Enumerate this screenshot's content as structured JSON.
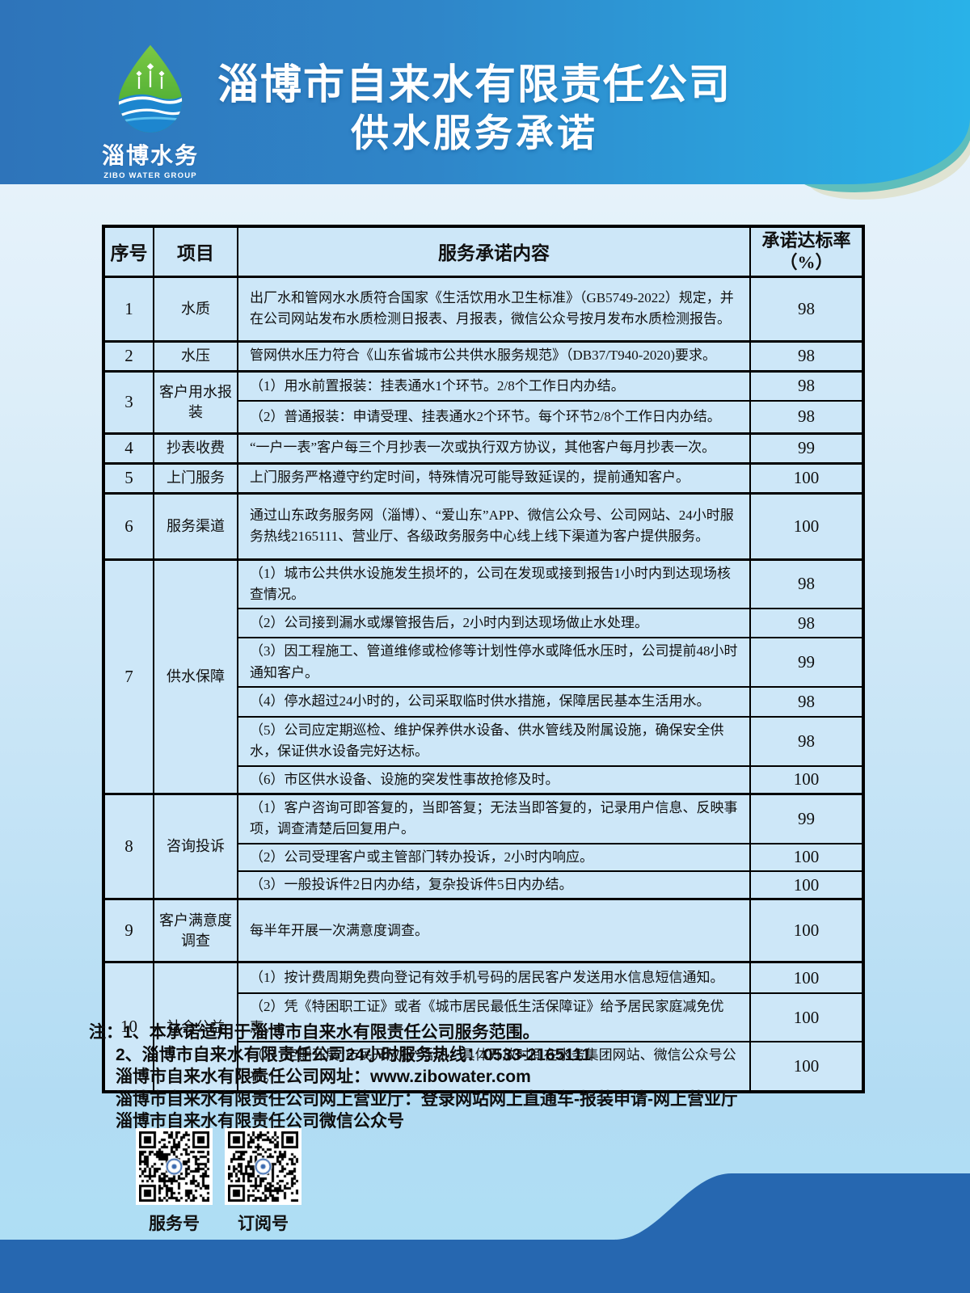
{
  "header": {
    "logo_cn": "淄博水务",
    "logo_en": "ZIBO WATER GROUP",
    "title_line1": "淄博市自来水有限责任公司",
    "title_line2": "供水服务承诺"
  },
  "table": {
    "headers": {
      "no": "序号",
      "item": "项目",
      "content": "服务承诺内容",
      "rate_line1": "承诺达标率",
      "rate_line2": "（%）"
    },
    "groups": [
      {
        "no": "1",
        "item": "水质",
        "rows": [
          {
            "content": "出厂水和管网水水质符合国家《生活饮用水卫生标准》（GB5749-2022）规定，并在公司网站发布水质检测日报表、月报表，微信公众号按月发布水质检测报告。",
            "rate": "98"
          }
        ]
      },
      {
        "no": "2",
        "item": "水压",
        "rows": [
          {
            "content": "管网供水压力符合《山东省城市公共供水服务规范》（DB37/T940-2020)要求。",
            "rate": "98"
          }
        ]
      },
      {
        "no": "3",
        "item": "客户用水报装",
        "rows": [
          {
            "content": "（1）用水前置报装：挂表通水1个环节。2/8个工作日内办结。",
            "rate": "98"
          },
          {
            "content": "（2）普通报装：申请受理、挂表通水2个环节。每个环节2/8个工作日内办结。",
            "rate": "98"
          }
        ]
      },
      {
        "no": "4",
        "item": "抄表收费",
        "rows": [
          {
            "content": "“一户一表”客户每三个月抄表一次或执行双方协议，其他客户每月抄表一次。",
            "rate": "99"
          }
        ]
      },
      {
        "no": "5",
        "item": "上门服务",
        "rows": [
          {
            "content": "上门服务严格遵守约定时间，特殊情况可能导致延误的，提前通知客户。",
            "rate": "100"
          }
        ]
      },
      {
        "no": "6",
        "item": "服务渠道",
        "rows": [
          {
            "content": "通过山东政务服务网（淄博）、“爱山东”APP、微信公众号、公司网站、24小时服务热线2165111、营业厅、各级政务服务中心线上线下渠道为客户提供服务。",
            "rate": "100"
          }
        ]
      },
      {
        "no": "7",
        "item": "供水保障",
        "rows": [
          {
            "content": "（1）城市公共供水设施发生损坏的，公司在发现或接到报告1小时内到达现场核查情况。",
            "rate": "98"
          },
          {
            "content": "（2）公司接到漏水或爆管报告后，2小时内到达现场做止水处理。",
            "rate": "98"
          },
          {
            "content": "（3）因工程施工、管道维修或检修等计划性停水或降低水压时，公司提前48小时通知客户。",
            "rate": "99"
          },
          {
            "content": "（4）停水超过24小时的，公司采取临时供水措施，保障居民基本生活用水。",
            "rate": "98"
          },
          {
            "content": "（5）公司应定期巡检、维护保养供水设备、供水管线及附属设施，确保安全供水，保证供水设备完好达标。",
            "rate": "98"
          },
          {
            "content": "（6）市区供水设备、设施的突发性事故抢修及时。",
            "rate": "100"
          }
        ]
      },
      {
        "no": "8",
        "item": "咨询投诉",
        "rows": [
          {
            "content": "（1）客户咨询可即答复的，当即答复；无法当即答复的，记录用户信息、反映事项，调查清楚后回复用户。",
            "rate": "99"
          },
          {
            "content": "（2）公司受理客户或主管部门转办投诉，2小时内响应。",
            "rate": "100"
          },
          {
            "content": "（3）一般投诉件2日内办结，复杂投诉件5日内办结。",
            "rate": "100"
          }
        ]
      },
      {
        "no": "9",
        "item": "客户满意度调查",
        "rows": [
          {
            "content": "每半年开展一次满意度调查。",
            "rate": "100"
          }
        ]
      },
      {
        "no": "10",
        "item": "社会公益",
        "rows": [
          {
            "content": "（1）按计费周期免费向登记有效手机号码的居民客户发送用水信息短信通知。",
            "rate": "100"
          },
          {
            "content": "（2）凭《特困职工证》或者《城市居民最低生活保障证》给予居民家庭减免优惠。",
            "rate": "100"
          },
          {
            "content": "（3）定期开展“市民开放日”活动，具体开放时间在水务集团网站、微信公众号公布。",
            "rate": "100"
          }
        ]
      }
    ]
  },
  "notes": {
    "line1": "注：1、本承诺适用于淄博市自来水有限责任公司服务范围。",
    "line2": "2、淄博市自来水有限责任公司24小时服务热线：0533-2165111",
    "line3": "淄博市自来水有限责任公司网址：www.zibowater.com",
    "line4": "淄博市自来水有限责任公司网上营业厅：登录网站网上直通车-报装申请-网上营业厅",
    "line5": "淄博市自来水有限责任公司微信公众号"
  },
  "qr": {
    "label_service": "服务号",
    "label_subscribe": "订阅号"
  },
  "colors": {
    "header_gradient_left": "#2E74BA",
    "header_gradient_right": "#29B2E8",
    "accent_teal": "#5FBEBB",
    "accent_cream": "#DFE3D2",
    "table_bg": "#CDE7F8",
    "footer_wave": "#2667B0",
    "logo_green": "#52B43C",
    "logo_wave_blue": "#1D86CF"
  }
}
